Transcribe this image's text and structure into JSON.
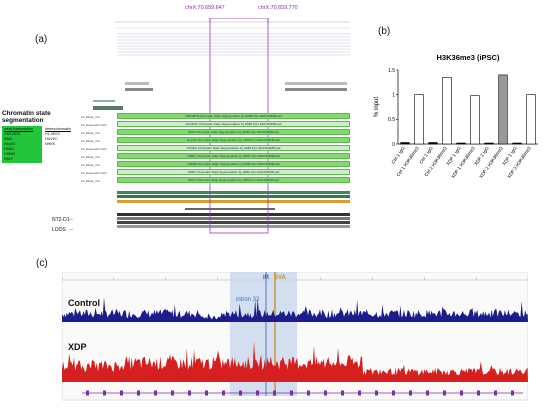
{
  "panel_a": {
    "label": "(a)",
    "marker_left": "chrX:70,659,647",
    "marker_right": "chrX:70,659,770",
    "legend": {
      "title": "Chromatin state segmentation",
      "col1_header": "weak transcription",
      "col1_items": [
        "GM12878",
        "K562",
        "HepG2",
        "HMEC",
        "HSMM",
        "NHLF"
      ],
      "col2_header": "heterochromatin",
      "col2_items": [
        "H1-hESC",
        "HUVEC",
        "NHEK"
      ]
    },
    "segmentation_tracks": [
      {
        "side": "11_Weak_Txn",
        "title": "GM12878 Chromatin State Segmentation by HMM from ENCODE/Broad"
      },
      {
        "side": "13_Heterochrom/lo",
        "title": "H1-hESC Chromatin State Segmentation by HMM from ENCODE/Broad"
      },
      {
        "side": "11_Weak_Txn",
        "title": "K562 Chromatin State Segmentation by HMM from ENCODE/Broad"
      },
      {
        "side": "11_Weak_Txn",
        "title": "HepG2 Chromatin State Segmentation by HMM from ENCODE/Broad"
      },
      {
        "side": "13_Heterochrom/lo",
        "title": "HUVEC Chromatin State Segmentation by HMM from ENCODE/Broad"
      },
      {
        "side": "11_Weak_Txn",
        "title": "HMEC Chromatin State Segmentation by HMM from ENCODE/Broad"
      },
      {
        "side": "11_Weak_Txn",
        "title": "HSMM Chromatin State Segmentation by HMM from ENCODE/Broad"
      },
      {
        "side": "13_Heterochrom/lo",
        "title": "NHEK Chromatin State Segmentation by HMM from ENCODE/Broad"
      },
      {
        "side": "11_Weak_Txn",
        "title": "NHLF Chromatin State Segmentation by HMM from ENCODE/Broad"
      }
    ],
    "bottom_labels": [
      "NT2-D1",
      "LOOS"
    ]
  },
  "panel_b": {
    "label": "(b)",
    "chart_data": {
      "type": "bar",
      "title": "H3K36me3 (iPSC)",
      "ylabel": "% input",
      "ylim": [
        0,
        1.5
      ],
      "yticks": [
        0,
        0.5,
        1,
        1.5
      ],
      "categories": [
        "Ctrl 1 IgG",
        "Ctrl 1 H3K36me3",
        "Ctrl 2 IgG",
        "Ctrl 2 H3K36me3",
        "XDP 1 IgG",
        "XDP 1 H3K36me3",
        "XDP 2 IgG",
        "XDP 2 H3K36me3",
        "XDP 3 IgG",
        "XDP 3 H3K36me3"
      ],
      "values": [
        0.03,
        1.0,
        0.03,
        1.35,
        0.02,
        0.98,
        0.02,
        1.4,
        0.02,
        1.0
      ],
      "fills": [
        "#000000",
        "#ffffff",
        "#000000",
        "#ffffff",
        "#000000",
        "#ffffff",
        "#000000",
        "#999999",
        "#000000",
        "#ffffff"
      ]
    }
  },
  "panel_c": {
    "label": "(c)",
    "track_control": "Control",
    "track_xdp": "XDP",
    "region_intron": "intron 32",
    "region_ir": "IR",
    "region_sva": "SVA",
    "colors": {
      "control": "#1c1c8c",
      "xdp": "#d62020",
      "highlight": "#c5d6ec",
      "sva": "#c8902a",
      "ir_line": "#3b5ca8"
    }
  }
}
